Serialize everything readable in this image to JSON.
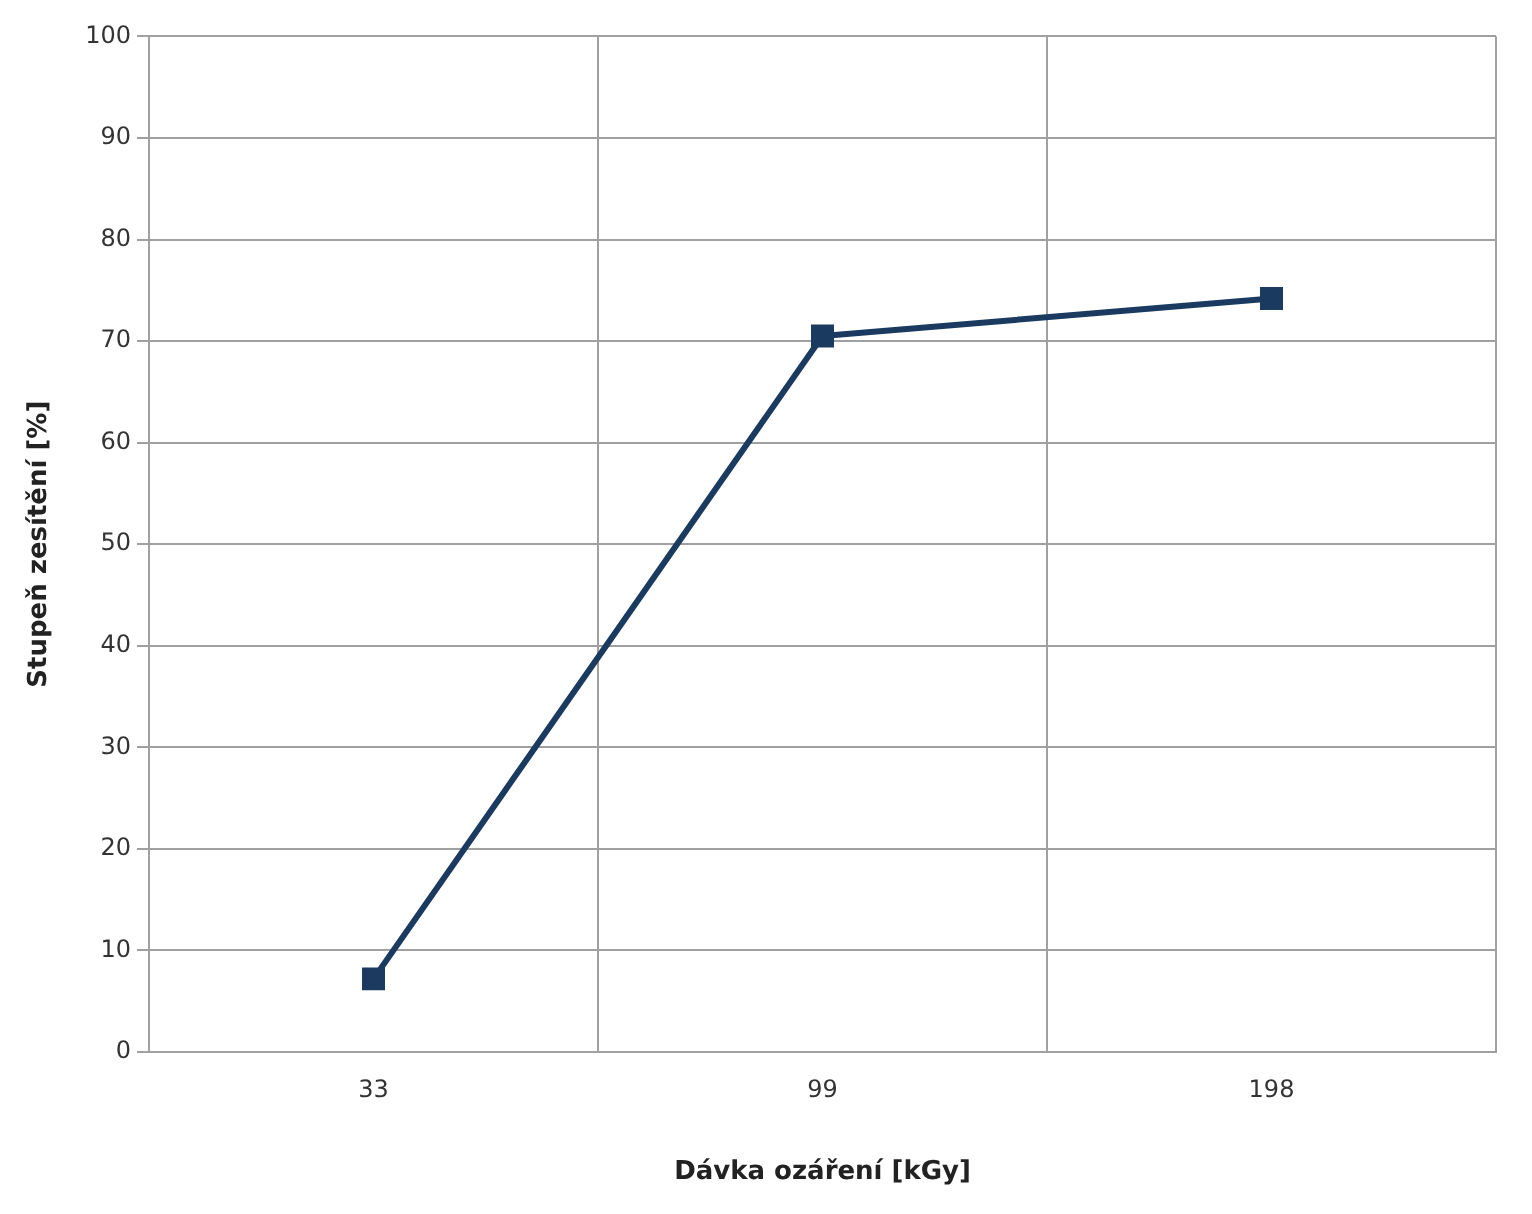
{
  "chart_data": {
    "type": "line",
    "xlabel": "Dávka ozáření [kGy]",
    "ylabel": "Stupeň zesítění [%]",
    "categories": [
      "33",
      "99",
      "198"
    ],
    "series": [
      {
        "color": "#1a3a5f",
        "values": [
          7.2,
          70.5,
          74.2
        ]
      }
    ],
    "ylim": [
      0,
      100
    ],
    "yticks": [
      0,
      10,
      20,
      30,
      40,
      50,
      60,
      70,
      80,
      90,
      100
    ],
    "grid": true,
    "legend": false,
    "marker": "square",
    "line_style": "solid"
  }
}
